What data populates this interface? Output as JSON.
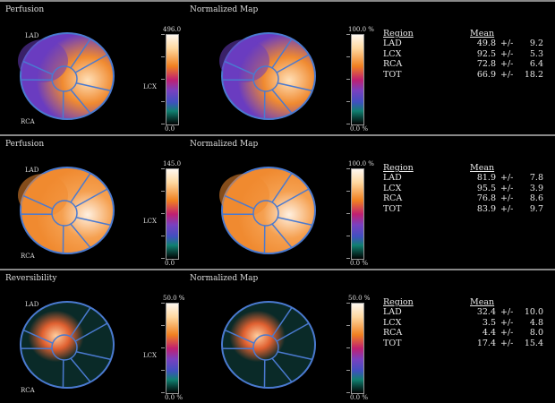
{
  "panels": [
    {
      "title": "Perfusion",
      "map_title": "Normalized Map",
      "lad": "LAD",
      "rca": "RCA",
      "lcx": "LCX",
      "scale1": {
        "max": "496.0",
        "min": "0.0"
      },
      "scale2": {
        "max": "100.0 %",
        "min": "0.0 %"
      },
      "colors": {
        "base": "#6a3cc0",
        "hot": "#ffe0b8",
        "warm": "#f08a30",
        "hotspot": "right"
      },
      "table": {
        "region_header": "Region",
        "mean_header": "Mean",
        "rows": [
          {
            "region": "LAD",
            "mean": "49.8",
            "pm": "+/-",
            "sd": "9.2"
          },
          {
            "region": "LCX",
            "mean": "92.5",
            "pm": "+/-",
            "sd": "5.3"
          },
          {
            "region": "RCA",
            "mean": "72.8",
            "pm": "+/-",
            "sd": "6.4"
          },
          {
            "region": "TOT",
            "mean": "66.9",
            "pm": "+/-",
            "sd": "18.2"
          }
        ]
      }
    },
    {
      "title": "Perfusion",
      "map_title": "Normalized Map",
      "lad": "LAD",
      "rca": "RCA",
      "lcx": "LCX",
      "scale1": {
        "max": "145.0",
        "min": "0.0"
      },
      "scale2": {
        "max": "100.0 %",
        "min": "0.0 %"
      },
      "colors": {
        "base": "#f08a30",
        "hot": "#fff0e0",
        "warm": "#f5a050",
        "hotspot": "right"
      },
      "table": {
        "region_header": "Region",
        "mean_header": "Mean",
        "rows": [
          {
            "region": "LAD",
            "mean": "81.9",
            "pm": "+/-",
            "sd": "7.8"
          },
          {
            "region": "LCX",
            "mean": "95.5",
            "pm": "+/-",
            "sd": "3.9"
          },
          {
            "region": "RCA",
            "mean": "76.8",
            "pm": "+/-",
            "sd": "8.6"
          },
          {
            "region": "TOT",
            "mean": "83.9",
            "pm": "+/-",
            "sd": "9.7"
          }
        ]
      }
    },
    {
      "title": "Reversibility",
      "map_title": "Normalized Map",
      "lad": "LAD",
      "rca": "RCA",
      "lcx": "LCX",
      "scale1": {
        "max": "50.0 %",
        "min": "0.0 %"
      },
      "scale2": {
        "max": "50.0 %",
        "min": "0.0 %"
      },
      "colors": {
        "base": "#0a2a28",
        "hot": "#ffd0a0",
        "warm": "#e06030",
        "hotspot": "upper-left"
      },
      "table": {
        "region_header": "Region",
        "mean_header": "Mean",
        "rows": [
          {
            "region": "LAD",
            "mean": "32.4",
            "pm": "+/-",
            "sd": "10.0"
          },
          {
            "region": "LCX",
            "mean": "3.5",
            "pm": "+/-",
            "sd": "4.8"
          },
          {
            "region": "RCA",
            "mean": "4.4",
            "pm": "+/-",
            "sd": "8.0"
          },
          {
            "region": "TOT",
            "mean": "17.4",
            "pm": "+/-",
            "sd": "15.4"
          }
        ]
      }
    }
  ],
  "segment_outline_color": "#4a7ad0"
}
